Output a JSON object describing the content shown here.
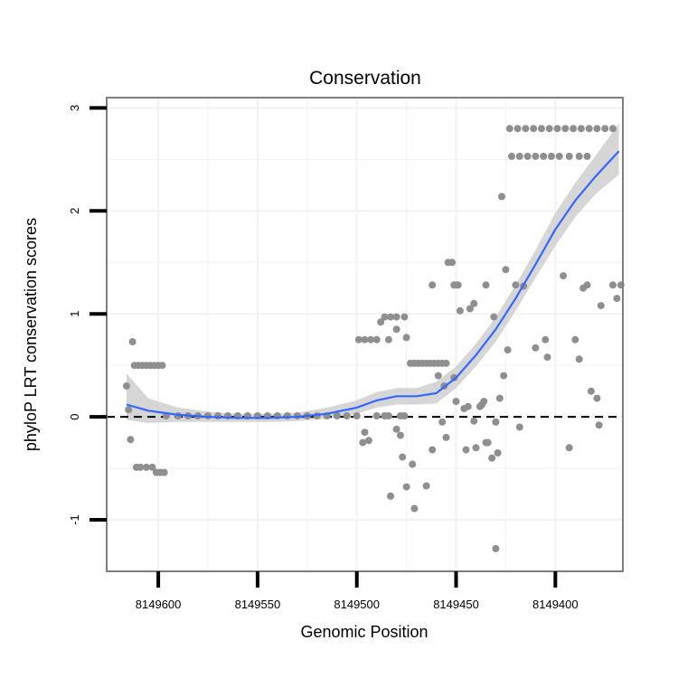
{
  "chart_data": {
    "type": "scatter",
    "title": "Conservation",
    "xlabel": "Genomic Position",
    "ylabel": "phyloP LRT conservation scores",
    "x_reversed": true,
    "xlim": [
      8149626,
      8149366
    ],
    "ylim": [
      -1.5,
      3.1
    ],
    "x_ticks": [
      8149600,
      8149550,
      8149500,
      8149450,
      8149400
    ],
    "x_tick_labels": [
      "8149600",
      "8149550",
      "8149500",
      "8149450",
      "8149400"
    ],
    "y_ticks": [
      -1,
      0,
      1,
      2,
      3
    ],
    "y_tick_labels": [
      "-1",
      "0",
      "1",
      "2",
      "3"
    ],
    "grid": true,
    "reference_line": {
      "y": 0,
      "style": "dashed"
    },
    "colors": {
      "points": "#8f8f8f",
      "smooth_line": "#3366ff",
      "confidence_band": "#cfcfcf",
      "panel_border": "#7f7f7f",
      "grid": "#f2f2f2"
    },
    "points": [
      [
        8149616,
        0.3
      ],
      [
        8149615,
        0.07
      ],
      [
        8149614,
        -0.22
      ],
      [
        8149613,
        0.73
      ],
      [
        8149612,
        0.5
      ],
      [
        8149610,
        0.5
      ],
      [
        8149608,
        0.5
      ],
      [
        8149606,
        0.5
      ],
      [
        8149604,
        0.5
      ],
      [
        8149602,
        0.5
      ],
      [
        8149600,
        0.5
      ],
      [
        8149598,
        0.5
      ],
      [
        8149611,
        -0.49
      ],
      [
        8149609,
        -0.49
      ],
      [
        8149606,
        -0.49
      ],
      [
        8149603,
        -0.49
      ],
      [
        8149601,
        -0.54
      ],
      [
        8149599,
        -0.54
      ],
      [
        8149597,
        -0.54
      ],
      [
        8149596,
        0.01
      ],
      [
        8149590,
        0.01
      ],
      [
        8149585,
        0.01
      ],
      [
        8149580,
        0.01
      ],
      [
        8149575,
        0.01
      ],
      [
        8149570,
        0.01
      ],
      [
        8149565,
        0.01
      ],
      [
        8149560,
        0.01
      ],
      [
        8149555,
        0.01
      ],
      [
        8149550,
        0.01
      ],
      [
        8149545,
        0.01
      ],
      [
        8149540,
        0.01
      ],
      [
        8149535,
        0.01
      ],
      [
        8149530,
        0.01
      ],
      [
        8149525,
        0.01
      ],
      [
        8149520,
        0.01
      ],
      [
        8149515,
        0.01
      ],
      [
        8149510,
        0.01
      ],
      [
        8149505,
        0.01
      ],
      [
        8149500,
        0.01
      ],
      [
        8149499,
        0.75
      ],
      [
        8149496,
        0.75
      ],
      [
        8149493,
        0.75
      ],
      [
        8149490,
        0.75
      ],
      [
        8149488,
        0.92
      ],
      [
        8149486,
        0.97
      ],
      [
        8149483,
        0.97
      ],
      [
        8149480,
        0.97
      ],
      [
        8149476,
        0.97
      ],
      [
        8149475,
        0.77
      ],
      [
        8149480,
        0.85
      ],
      [
        8149484,
        0.75
      ],
      [
        8149497,
        -0.25
      ],
      [
        8149496,
        -0.15
      ],
      [
        8149494,
        -0.23
      ],
      [
        8149490,
        0.01
      ],
      [
        8149486,
        0.01
      ],
      [
        8149484,
        0.01
      ],
      [
        8149483,
        -0.77
      ],
      [
        8149480,
        -0.12
      ],
      [
        8149478,
        -0.18
      ],
      [
        8149477,
        -0.39
      ],
      [
        8149475,
        -0.68
      ],
      [
        8149472,
        -0.46
      ],
      [
        8149471,
        -0.89
      ],
      [
        8149465,
        -0.67
      ],
      [
        8149478,
        0.01
      ],
      [
        8149476,
        0.01
      ],
      [
        8149473,
        0.52
      ],
      [
        8149471,
        0.52
      ],
      [
        8149469,
        0.52
      ],
      [
        8149467,
        0.52
      ],
      [
        8149465,
        0.52
      ],
      [
        8149463,
        0.52
      ],
      [
        8149461,
        0.52
      ],
      [
        8149459,
        0.52
      ],
      [
        8149457,
        0.52
      ],
      [
        8149455,
        0.52
      ],
      [
        8149462,
        1.28
      ],
      [
        8149462,
        -0.32
      ],
      [
        8149459,
        0.4
      ],
      [
        8149457,
        -0.05
      ],
      [
        8149456,
        0.3
      ],
      [
        8149455,
        -0.2
      ],
      [
        8149454,
        1.5
      ],
      [
        8149452,
        1.5
      ],
      [
        8149451,
        1.28
      ],
      [
        8149450,
        1.28
      ],
      [
        8149451,
        0.38
      ],
      [
        8149450,
        0.15
      ],
      [
        8149449,
        1.28
      ],
      [
        8149448,
        1.03
      ],
      [
        8149446,
        0.08
      ],
      [
        8149445,
        -0.32
      ],
      [
        8149444,
        0.1
      ],
      [
        8149443,
        1.05
      ],
      [
        8149441,
        1.1
      ],
      [
        8149441,
        -0.04
      ],
      [
        8149440,
        -0.3
      ],
      [
        8149438,
        0.1
      ],
      [
        8149437,
        0.12
      ],
      [
        8149436,
        0.15
      ],
      [
        8149435,
        1.28
      ],
      [
        8149435,
        -0.25
      ],
      [
        8149434,
        -0.25
      ],
      [
        8149432,
        -0.4
      ],
      [
        8149431,
        0.97
      ],
      [
        8149430,
        -0.05
      ],
      [
        8149429,
        -0.35
      ],
      [
        8149428,
        0.18
      ],
      [
        8149426,
        0.4
      ],
      [
        8149427,
        2.14
      ],
      [
        8149425,
        1.43
      ],
      [
        8149424,
        0.65
      ],
      [
        8149423,
        2.8
      ],
      [
        8149419,
        2.8
      ],
      [
        8149415,
        2.8
      ],
      [
        8149411,
        2.8
      ],
      [
        8149407,
        2.8
      ],
      [
        8149403,
        2.8
      ],
      [
        8149399,
        2.8
      ],
      [
        8149395,
        2.8
      ],
      [
        8149391,
        2.8
      ],
      [
        8149387,
        2.8
      ],
      [
        8149383,
        2.8
      ],
      [
        8149379,
        2.8
      ],
      [
        8149375,
        2.8
      ],
      [
        8149371,
        2.8
      ],
      [
        8149422,
        2.53
      ],
      [
        8149418,
        2.53
      ],
      [
        8149414,
        2.53
      ],
      [
        8149410,
        2.53
      ],
      [
        8149406,
        2.53
      ],
      [
        8149402,
        2.53
      ],
      [
        8149398,
        2.53
      ],
      [
        8149393,
        2.53
      ],
      [
        8149388,
        2.53
      ],
      [
        8149384,
        2.53
      ],
      [
        8149420,
        1.28
      ],
      [
        8149416,
        1.27
      ],
      [
        8149418,
        -0.1
      ],
      [
        8149410,
        0.67
      ],
      [
        8149405,
        0.75
      ],
      [
        8149404,
        0.58
      ],
      [
        8149396,
        1.37
      ],
      [
        8149393,
        -0.3
      ],
      [
        8149390,
        0.75
      ],
      [
        8149388,
        0.56
      ],
      [
        8149386,
        1.25
      ],
      [
        8149384,
        1.28
      ],
      [
        8149382,
        0.25
      ],
      [
        8149379,
        0.18
      ],
      [
        8149378,
        -0.08
      ],
      [
        8149377,
        1.08
      ],
      [
        8149371,
        1.28
      ],
      [
        8149369,
        1.15
      ],
      [
        8149367,
        1.28
      ],
      [
        8149430,
        -1.28
      ]
    ],
    "smooth_curve": {
      "x": [
        8149616,
        8149605,
        8149590,
        8149575,
        8149560,
        8149545,
        8149530,
        8149515,
        8149500,
        8149490,
        8149480,
        8149470,
        8149460,
        8149450,
        8149440,
        8149430,
        8149420,
        8149410,
        8149400,
        8149390,
        8149380,
        8149368
      ],
      "y": [
        0.12,
        0.06,
        0.02,
        0.0,
        -0.01,
        -0.01,
        0.0,
        0.03,
        0.09,
        0.16,
        0.2,
        0.2,
        0.23,
        0.38,
        0.6,
        0.85,
        1.15,
        1.48,
        1.82,
        2.1,
        2.33,
        2.58
      ],
      "lower": [
        -0.03,
        -0.06,
        -0.05,
        -0.05,
        -0.05,
        -0.05,
        -0.04,
        -0.02,
        0.03,
        0.09,
        0.12,
        0.12,
        0.13,
        0.28,
        0.49,
        0.73,
        1.03,
        1.35,
        1.66,
        1.94,
        2.16,
        2.35
      ],
      "upper": [
        0.42,
        0.18,
        0.09,
        0.05,
        0.03,
        0.03,
        0.04,
        0.09,
        0.16,
        0.24,
        0.28,
        0.28,
        0.34,
        0.49,
        0.71,
        0.97,
        1.28,
        1.62,
        1.98,
        2.27,
        2.53,
        2.85
      ]
    }
  }
}
